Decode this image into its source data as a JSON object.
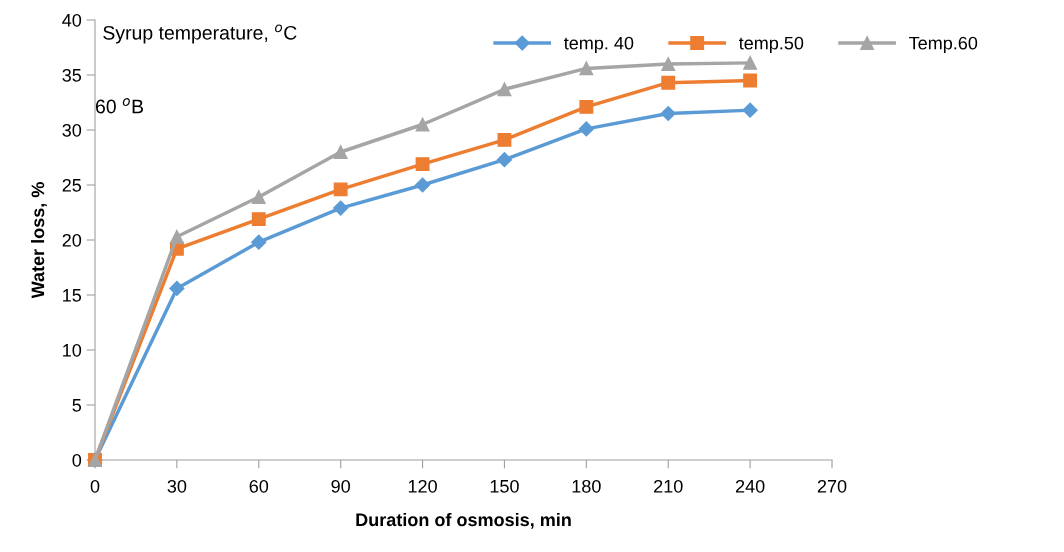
{
  "chart_data": {
    "type": "line",
    "xlabel": "Duration of osmosis, min",
    "ylabel": "Water loss, %",
    "annotations": [
      "Syrup temperature, $^{o}$C",
      "60 $^{o}$B"
    ],
    "x": [
      0,
      30,
      60,
      90,
      120,
      150,
      180,
      210,
      240
    ],
    "series": [
      {
        "name": "temp. 40",
        "color": "#5b9bd5",
        "marker": "diamond",
        "values": [
          0,
          15.6,
          19.8,
          22.9,
          25.0,
          27.3,
          30.1,
          31.5,
          31.8
        ]
      },
      {
        "name": "temp.50",
        "color": "#ed7d31",
        "marker": "square",
        "values": [
          0,
          19.2,
          21.9,
          24.6,
          26.9,
          29.1,
          32.1,
          34.3,
          34.5
        ]
      },
      {
        "name": "Temp.60",
        "color": "#a5a5a5",
        "marker": "triangle",
        "values": [
          0,
          20.3,
          23.9,
          28.0,
          30.5,
          33.7,
          35.6,
          36.0,
          36.1
        ]
      }
    ],
    "xlim": [
      0,
      270
    ],
    "xticks": [
      0,
      30,
      60,
      90,
      120,
      150,
      180,
      210,
      240,
      270
    ],
    "ylim": [
      0,
      40
    ],
    "yticks": [
      0,
      5,
      10,
      15,
      20,
      25,
      30,
      35,
      40
    ],
    "grid": false,
    "legend": "top right",
    "line_style": "solid"
  }
}
